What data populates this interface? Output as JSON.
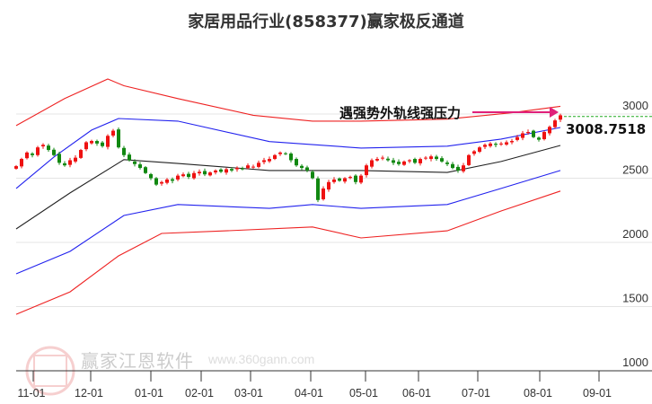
{
  "chart_data": {
    "type": "candlestick",
    "title": "家居用品行业(858377)赢家极反通道",
    "y_ticks": [
      1000,
      1500,
      2000,
      2500,
      3000
    ],
    "ylim": [
      1000,
      3300
    ],
    "x_tick_labels": [
      "11-01",
      "12-01",
      "01-01",
      "02-01",
      "03-01",
      "04-01",
      "05-01",
      "06-01",
      "07-01",
      "08-01",
      "09-01"
    ],
    "closes": [
      2594,
      2650,
      2700,
      2680,
      2740,
      2760,
      2720,
      2680,
      2620,
      2600,
      2640,
      2660,
      2720,
      2780,
      2790,
      2770,
      2750,
      2830,
      2870,
      2740,
      2680,
      2640,
      2610,
      2580,
      2540,
      2500,
      2450,
      2470,
      2490,
      2480,
      2520,
      2530,
      2510,
      2540,
      2550,
      2530,
      2545,
      2560,
      2550,
      2570,
      2560,
      2580,
      2575,
      2600,
      2590,
      2620,
      2640,
      2650,
      2680,
      2700,
      2690,
      2640,
      2600,
      2580,
      2560,
      2500,
      2330,
      2420,
      2470,
      2490,
      2480,
      2500,
      2510,
      2470,
      2520,
      2600,
      2640,
      2650,
      2660,
      2640,
      2620,
      2610,
      2630,
      2640,
      2620,
      2650,
      2660,
      2670,
      2650,
      2630,
      2610,
      2580,
      2560,
      2600,
      2680,
      2710,
      2740,
      2760,
      2770,
      2760,
      2770,
      2780,
      2790,
      2820,
      2850,
      2860,
      2820,
      2800,
      2860,
      2900,
      2950,
      2990
    ],
    "bands": [
      {
        "name": "upper-outer",
        "color": "#ee2222",
        "points": [
          [
            0,
            2910
          ],
          [
            9,
            3120
          ],
          [
            17,
            3273
          ],
          [
            20,
            3220
          ],
          [
            30,
            3120
          ],
          [
            44,
            2990
          ],
          [
            55,
            2945
          ],
          [
            64,
            2945
          ],
          [
            80,
            2960
          ],
          [
            92,
            3010
          ],
          [
            101,
            3060
          ]
        ]
      },
      {
        "name": "upper-inner",
        "color": "#2222ee",
        "points": [
          [
            0,
            2420
          ],
          [
            7,
            2665
          ],
          [
            14,
            2875
          ],
          [
            19,
            2965
          ],
          [
            30,
            2945
          ],
          [
            47,
            2785
          ],
          [
            64,
            2735
          ],
          [
            80,
            2750
          ],
          [
            90,
            2805
          ],
          [
            101,
            2895
          ]
        ]
      },
      {
        "name": "middle",
        "color": "#222222",
        "points": [
          [
            0,
            2105
          ],
          [
            10,
            2385
          ],
          [
            20,
            2645
          ],
          [
            30,
            2615
          ],
          [
            47,
            2560
          ],
          [
            64,
            2560
          ],
          [
            80,
            2545
          ],
          [
            90,
            2630
          ],
          [
            101,
            2755
          ]
        ]
      },
      {
        "name": "lower-inner",
        "color": "#2222ee",
        "points": [
          [
            0,
            1755
          ],
          [
            10,
            1930
          ],
          [
            20,
            2210
          ],
          [
            30,
            2295
          ],
          [
            47,
            2265
          ],
          [
            55,
            2295
          ],
          [
            64,
            2265
          ],
          [
            80,
            2295
          ],
          [
            90,
            2420
          ],
          [
            101,
            2560
          ]
        ]
      },
      {
        "name": "lower-outer",
        "color": "#ee2222",
        "points": [
          [
            0,
            1440
          ],
          [
            10,
            1615
          ],
          [
            19,
            1895
          ],
          [
            27,
            2070
          ],
          [
            39,
            2090
          ],
          [
            55,
            2120
          ],
          [
            64,
            2035
          ],
          [
            80,
            2090
          ],
          [
            90,
            2245
          ],
          [
            101,
            2400
          ]
        ]
      }
    ],
    "annotation": {
      "text": "遇强势外轨线强压力",
      "value": "3008.7518",
      "price": 3008.75
    },
    "colors": {
      "up": "#ee1111",
      "down": "#118811",
      "arrow": "#e0207a",
      "level": "#22aa22"
    }
  },
  "watermark": {
    "name": "赢家江恩软件",
    "url": "www.360gann.com",
    "seal": "江赢恩家"
  }
}
